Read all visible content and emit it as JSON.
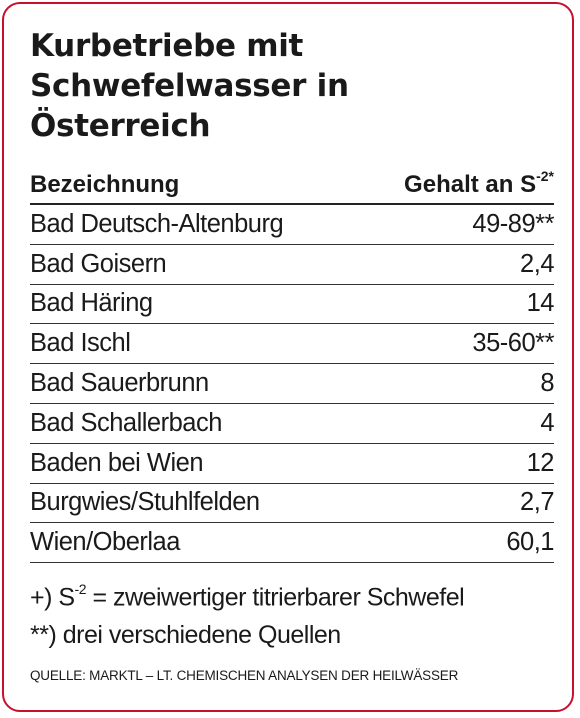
{
  "title": {
    "line1": "Kurbetriebe mit",
    "line2": "Schwefelwasser in",
    "line3": "Österreich"
  },
  "table": {
    "header_name": "Bezeichnung",
    "header_value": "Gehalt an S",
    "header_value_sup": "-2*",
    "rows": [
      {
        "name": "Bad Deutsch-Altenburg",
        "value": "49-89**"
      },
      {
        "name": "Bad Goisern",
        "value": "2,4"
      },
      {
        "name": "Bad Häring",
        "value": "14"
      },
      {
        "name": "Bad Ischl",
        "value": "35-60**"
      },
      {
        "name": "Bad Sauerbrunn",
        "value": "8"
      },
      {
        "name": "Bad Schallerbach",
        "value": "4"
      },
      {
        "name": "Baden bei Wien",
        "value": "12"
      },
      {
        "name": "Burgwies/Stuhlfelden",
        "value": "2,7"
      },
      {
        "name": "Wien/Oberlaa",
        "value": "60,1"
      }
    ]
  },
  "notes": {
    "note1_prefix": "+) S",
    "note1_sup": "-2",
    "note1_text": " = zweiwertiger titrierbarer Schwefel",
    "note2": "**) drei verschiedene Quellen"
  },
  "source": "QUELLE: MARKTL – LT. CHEMISCHEN ANALYSEN DER HEILWÄSSER",
  "colors": {
    "border": "#c8102e",
    "text": "#1a1a1a"
  }
}
